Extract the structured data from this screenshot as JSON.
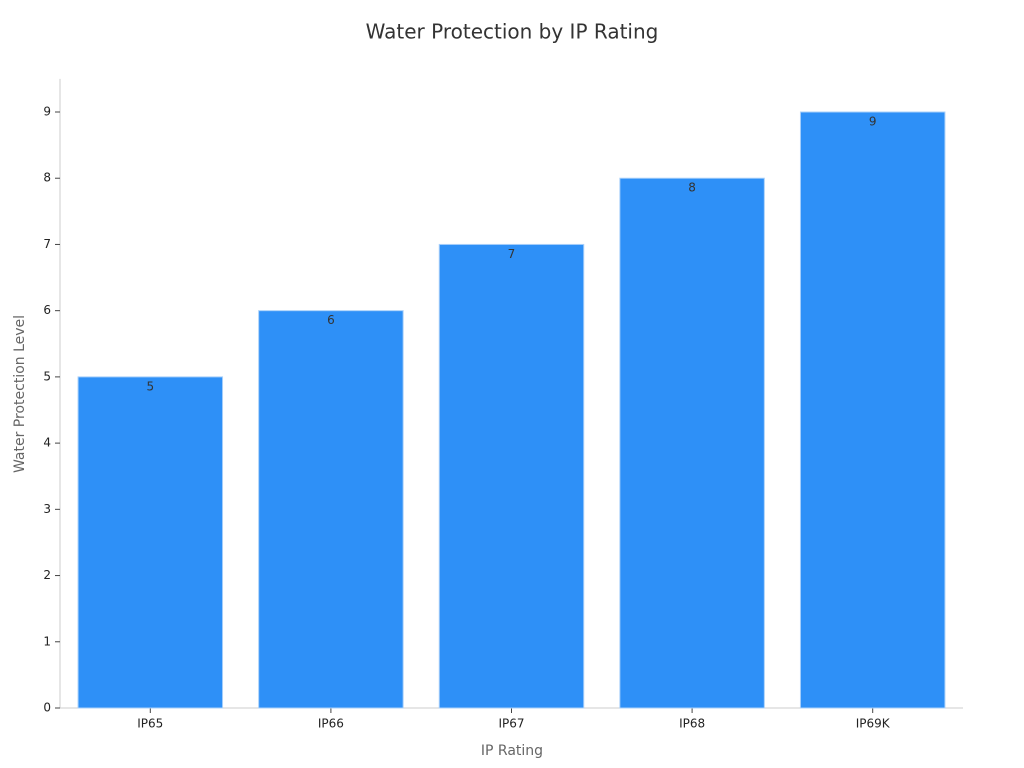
{
  "chart_data": {
    "type": "bar",
    "title": "Water Protection by IP Rating",
    "x_label": "IP Rating",
    "y_label": "Water Protection Level",
    "categories": [
      "IP65",
      "IP66",
      "IP67",
      "IP68",
      "IP69K"
    ],
    "values": [
      5,
      6,
      7,
      8,
      9
    ],
    "color": "#2e90f7",
    "ylim": [
      0,
      9.5
    ],
    "yticks": [
      0,
      1,
      2,
      3,
      4,
      5,
      6,
      7,
      8,
      9
    ],
    "grid": false,
    "data_labels": true
  }
}
